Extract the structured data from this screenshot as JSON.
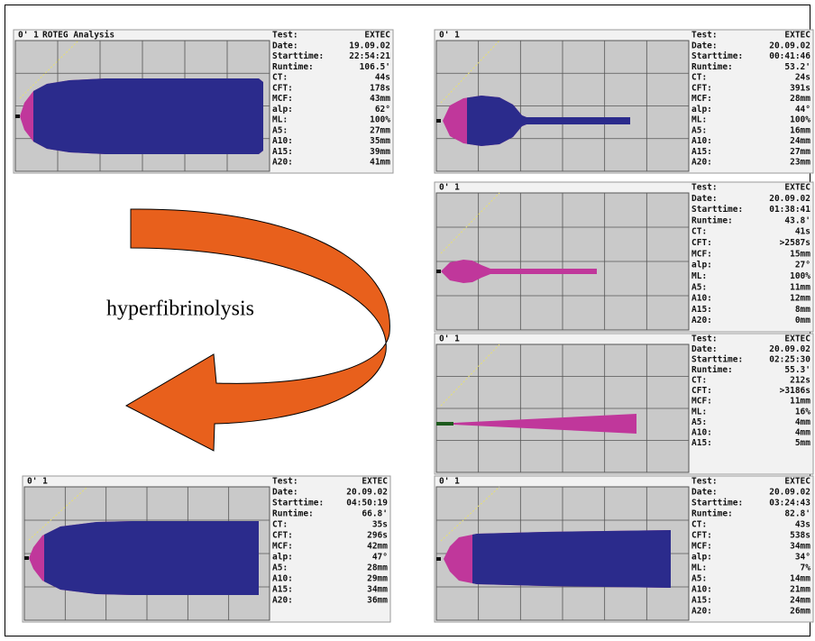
{
  "annotation": "hyperfibrinolysis",
  "panels": [
    {
      "header": "0' 1",
      "title": "ROTEG Analysis",
      "rows": [
        [
          "Test:",
          "EXTEC"
        ],
        [
          "Date:",
          "19.09.02"
        ],
        [
          "Starttime:",
          "22:54:21"
        ],
        [
          "Runtime:",
          "106.5'"
        ],
        [
          "CT:",
          "44s"
        ],
        [
          "CFT:",
          "178s"
        ],
        [
          "MCF:",
          "43mm"
        ],
        [
          "alp:",
          "62°"
        ],
        [
          "ML:",
          "100%"
        ],
        [
          "A5:",
          "27mm"
        ],
        [
          "A10:",
          "35mm"
        ],
        [
          "A15:",
          "39mm"
        ],
        [
          "A20:",
          "41mm"
        ]
      ]
    },
    {
      "header": "0' 1",
      "rows": [
        [
          "Test:",
          "EXTEC"
        ],
        [
          "Date:",
          "20.09.02"
        ],
        [
          "Starttime:",
          "00:41:46"
        ],
        [
          "Runtime:",
          "53.2'"
        ],
        [
          "CT:",
          "24s"
        ],
        [
          "CFT:",
          "391s"
        ],
        [
          "MCF:",
          "28mm"
        ],
        [
          "alp:",
          "44°"
        ],
        [
          "ML:",
          "100%"
        ],
        [
          "A5:",
          "16mm"
        ],
        [
          "A10:",
          "24mm"
        ],
        [
          "A15:",
          "27mm"
        ],
        [
          "A20:",
          "23mm"
        ]
      ]
    },
    {
      "header": "0' 1",
      "rows": [
        [
          "Test:",
          "EXTEC"
        ],
        [
          "Date:",
          "20.09.02"
        ],
        [
          "Starttime:",
          "01:38:41"
        ],
        [
          "Runtime:",
          "43.8'"
        ],
        [
          "CT:",
          "41s"
        ],
        [
          "CFT:",
          ">2587s"
        ],
        [
          "MCF:",
          "15mm"
        ],
        [
          "alp:",
          "27°"
        ],
        [
          "ML:",
          "100%"
        ],
        [
          "A5:",
          "11mm"
        ],
        [
          "A10:",
          "12mm"
        ],
        [
          "A15:",
          "8mm"
        ],
        [
          "A20:",
          "0mm"
        ]
      ]
    },
    {
      "header": "0' 1",
      "rows": [
        [
          "Test:",
          "EXTEC"
        ],
        [
          "Date:",
          "20.09.02"
        ],
        [
          "Starttime:",
          "02:25:30"
        ],
        [
          "Runtime:",
          "55.3'"
        ],
        [
          "CT:",
          "212s"
        ],
        [
          "CFT:",
          ">3186s"
        ],
        [
          "MCF:",
          "11mm"
        ],
        [
          "ML:",
          "16%"
        ],
        [
          "A5:",
          "4mm"
        ],
        [
          "A10:",
          "4mm"
        ],
        [
          "A15:",
          "5mm"
        ]
      ]
    },
    {
      "header": "0' 1",
      "rows": [
        [
          "Test:",
          "EXTEC"
        ],
        [
          "Date:",
          "20.09.02"
        ],
        [
          "Starttime:",
          "04:50:19"
        ],
        [
          "Runtime:",
          "66.8'"
        ],
        [
          "CT:",
          "35s"
        ],
        [
          "CFT:",
          "296s"
        ],
        [
          "MCF:",
          "42mm"
        ],
        [
          "alp:",
          "47°"
        ],
        [
          "A5:",
          "28mm"
        ],
        [
          "A10:",
          "29mm"
        ],
        [
          "A15:",
          "34mm"
        ],
        [
          "A20:",
          "36mm"
        ]
      ]
    },
    {
      "header": "0' 1",
      "rows": [
        [
          "Test:",
          "EXTEC"
        ],
        [
          "Date:",
          "20.09.02"
        ],
        [
          "Starttime:",
          "03:24:43"
        ],
        [
          "Runtime:",
          "82.8'"
        ],
        [
          "CT:",
          "43s"
        ],
        [
          "CFT:",
          "538s"
        ],
        [
          "MCF:",
          "34mm"
        ],
        [
          "alp:",
          "34°"
        ],
        [
          "ML:",
          "7%"
        ],
        [
          "A5:",
          "14mm"
        ],
        [
          "A10:",
          "21mm"
        ],
        [
          "A15:",
          "24mm"
        ],
        [
          "A20:",
          "26mm"
        ]
      ]
    }
  ]
}
